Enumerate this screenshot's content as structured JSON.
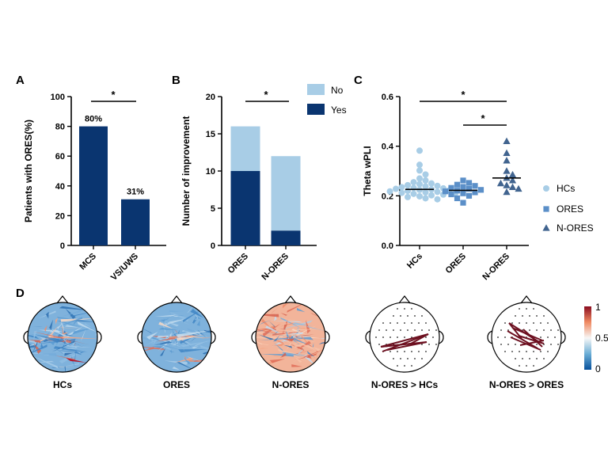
{
  "panel_labels": {
    "a": "A",
    "b": "B",
    "c": "C",
    "d": "D"
  },
  "colors": {
    "dark_blue": "#0a3570",
    "light_blue": "#a8cde6",
    "c_mid": "#5b8fc8",
    "c_dark": "#41648f",
    "line_red": "#6d1020"
  },
  "chart_data": [
    {
      "type": "bar",
      "panel": "A",
      "ylabel": "Patients with ORES(%)",
      "categories": [
        "MCS",
        "VS/UWS"
      ],
      "values": [
        80,
        31
      ],
      "data_labels": [
        "80%",
        "31%"
      ],
      "ylim": [
        0,
        100
      ],
      "yticks": [
        "0",
        "20",
        "40",
        "60",
        "80",
        "100"
      ],
      "significance": [
        {
          "from": "MCS",
          "to": "VS/UWS",
          "label": "*"
        }
      ]
    },
    {
      "type": "bar",
      "panel": "B",
      "stacked": true,
      "ylabel": "Number of improvement",
      "categories": [
        "ORES",
        "N-ORES"
      ],
      "series": [
        {
          "name": "Yes",
          "values": [
            10,
            2
          ],
          "color": "#0a3570"
        },
        {
          "name": "No",
          "values": [
            6,
            10
          ],
          "color": "#a8cde6"
        }
      ],
      "ylim": [
        0,
        20
      ],
      "yticks": [
        "0",
        "5",
        "10",
        "15",
        "20"
      ],
      "legend": [
        "No",
        "Yes"
      ],
      "legend_position": "top-right",
      "significance": [
        {
          "from": "ORES",
          "to": "N-ORES",
          "label": "*"
        }
      ]
    },
    {
      "type": "scatter",
      "panel": "C",
      "ylabel": "Theta wPLI",
      "categories": [
        "HCs",
        "ORES",
        "N-ORES"
      ],
      "ylim": [
        0,
        0.6
      ],
      "yticks": [
        "0.0",
        "0.2",
        "0.4",
        "0.6"
      ],
      "legend_position": "right",
      "series": [
        {
          "name": "HCs",
          "marker": "circle",
          "color": "#a8cde6",
          "mean": 0.226,
          "values": [
            0.382,
            0.325,
            0.302,
            0.286,
            0.27,
            0.262,
            0.255,
            0.25,
            0.247,
            0.243,
            0.24,
            0.238,
            0.235,
            0.232,
            0.23,
            0.228,
            0.226,
            0.224,
            0.222,
            0.22,
            0.218,
            0.216,
            0.214,
            0.212,
            0.21,
            0.208,
            0.205,
            0.202,
            0.198,
            0.195,
            0.19,
            0.186
          ]
        },
        {
          "name": "ORES",
          "marker": "square",
          "color": "#5b8fc8",
          "mean": 0.222,
          "values": [
            0.262,
            0.252,
            0.245,
            0.24,
            0.236,
            0.232,
            0.228,
            0.224,
            0.221,
            0.218,
            0.214,
            0.21,
            0.206,
            0.2,
            0.19,
            0.172
          ]
        },
        {
          "name": "N-ORES",
          "marker": "triangle",
          "color": "#41648f",
          "mean": 0.272,
          "values": [
            0.42,
            0.372,
            0.342,
            0.3,
            0.285,
            0.272,
            0.262,
            0.25,
            0.242,
            0.235,
            0.228,
            0.215
          ]
        }
      ],
      "significance": [
        {
          "from": "HCs",
          "to": "N-ORES",
          "label": "*"
        },
        {
          "from": "ORES",
          "to": "N-ORES",
          "label": "*"
        }
      ]
    },
    {
      "type": "heatmap",
      "panel": "D",
      "scale_ticks": [
        "1",
        "0.5",
        "0"
      ],
      "maps": [
        {
          "label": "HCs",
          "dominant": "blue"
        },
        {
          "label": "ORES",
          "dominant": "blue"
        },
        {
          "label": "N-ORES",
          "dominant": "red"
        },
        {
          "label": "N-ORES > HCs",
          "dominant": "lines"
        },
        {
          "label": "N-ORES > ORES",
          "dominant": "lines"
        }
      ]
    }
  ]
}
